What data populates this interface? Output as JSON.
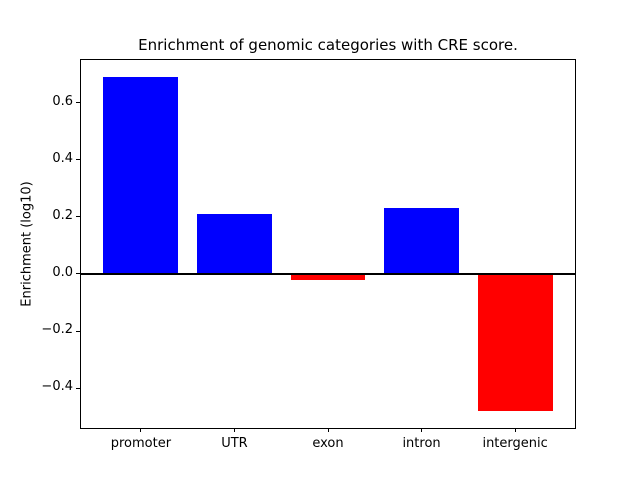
{
  "figure": {
    "background": "#ffffff"
  },
  "chart_data": {
    "type": "bar",
    "title": "Enrichment of genomic categories with CRE score.",
    "xlabel": "",
    "ylabel": "Enrichment (log10)",
    "categories": [
      "promoter",
      "UTR",
      "exon",
      "intron",
      "intergenic"
    ],
    "values": [
      0.69,
      0.21,
      -0.02,
      0.23,
      -0.48
    ],
    "ylim": [
      -0.54,
      0.75
    ],
    "yticks": [
      {
        "v": -0.4,
        "label": "−0.4"
      },
      {
        "v": -0.2,
        "label": "−0.2"
      },
      {
        "v": 0.0,
        "label": "0.0"
      },
      {
        "v": 0.2,
        "label": "0.2"
      },
      {
        "v": 0.4,
        "label": "0.4"
      },
      {
        "v": 0.6,
        "label": "0.6"
      }
    ],
    "colors": {
      "positive": "#0000ff",
      "negative": "#ff0000",
      "axis": "#000000"
    },
    "zero_line": true,
    "grid": false,
    "legend": null
  }
}
